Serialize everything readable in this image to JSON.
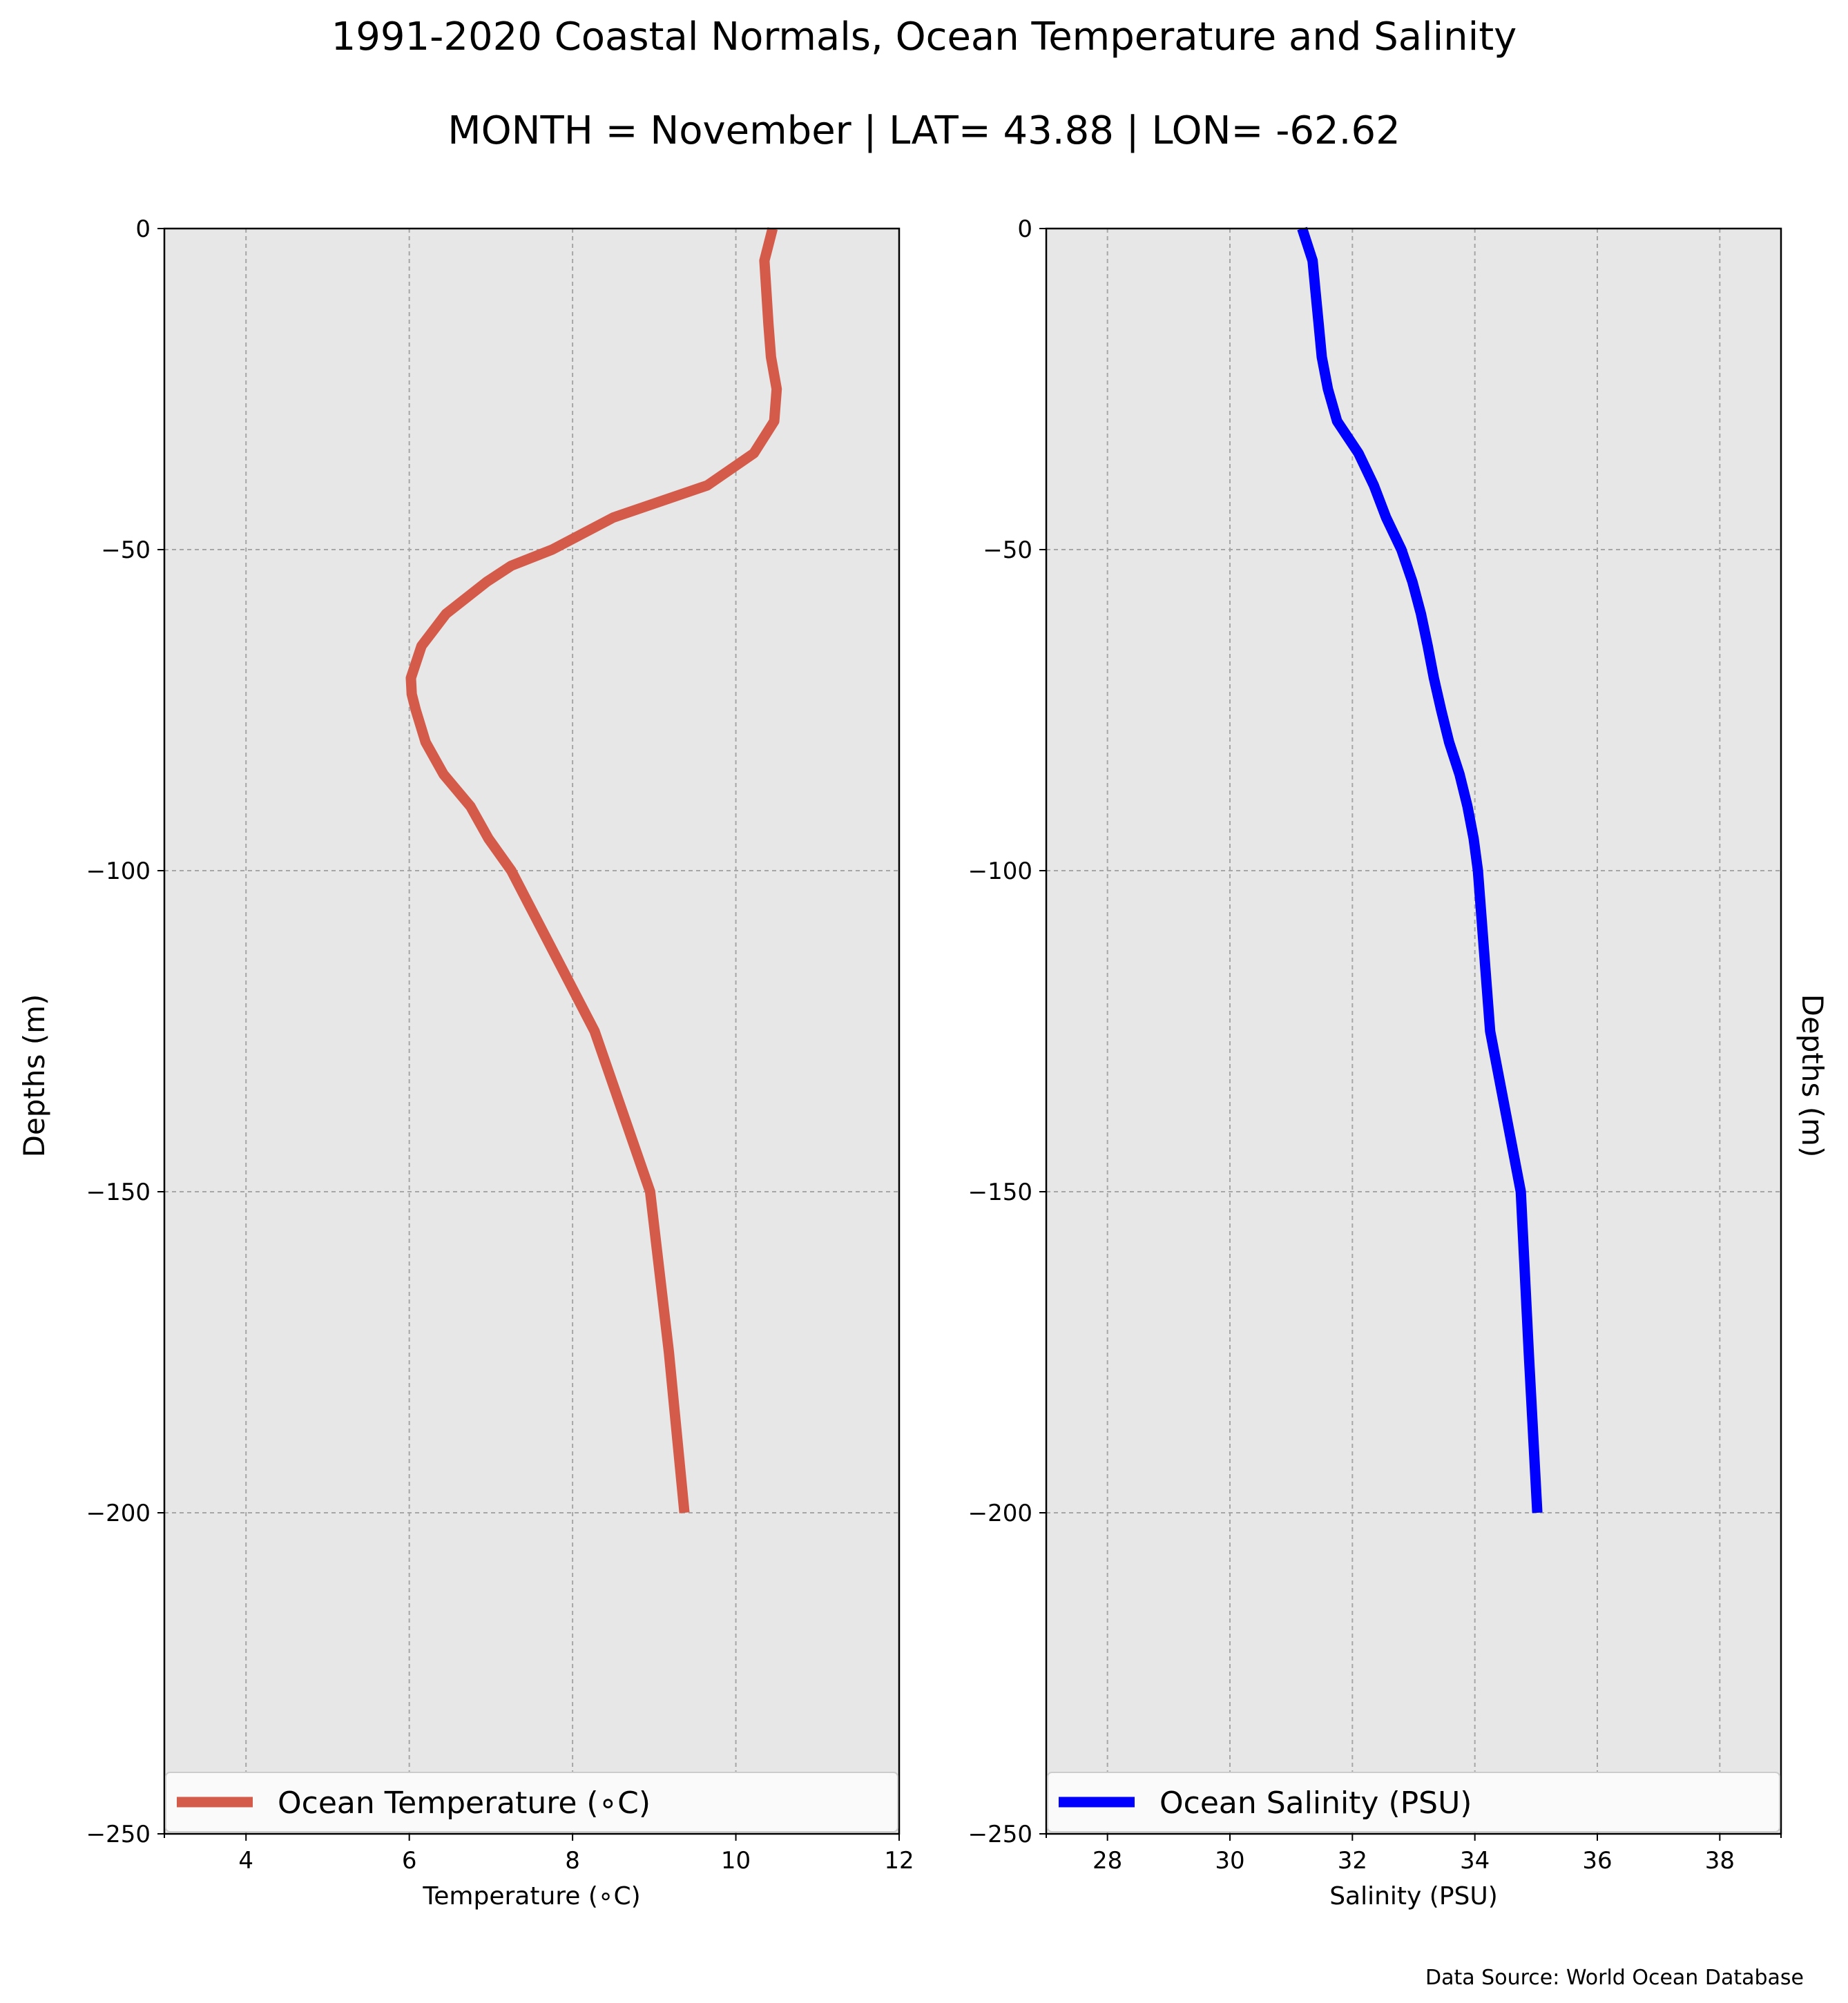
{
  "figure": {
    "title": "1991-2020 Coastal Normals, Ocean Temperature and Salinity",
    "subtitle": "MONTH = November | LAT= 43.88 | LON= -62.62",
    "source": "Data Source: World Ocean Database"
  },
  "colors": {
    "temperature": "#d45b4a",
    "salinity": "#0000ff",
    "panel_bg": "#e7e7e7",
    "grid": "#a6a6a6"
  },
  "chart_data": [
    {
      "type": "line",
      "xlabel": "Temperature ($^\\circ$C)",
      "xlabel_display": "Temperature (∘C)",
      "ylabel": "Depths (m)",
      "xlim": [
        3,
        12
      ],
      "ylim": [
        -250,
        0
      ],
      "xticks": [
        4,
        6,
        8,
        10,
        12
      ],
      "xtick_labels": [
        "4",
        "6",
        "8",
        "10",
        "12"
      ],
      "yticks": [
        0,
        -50,
        -100,
        -150,
        -200,
        -250
      ],
      "ytick_labels": [
        "0",
        "−50",
        "−100",
        "−150",
        "−200",
        "−250"
      ],
      "grid": true,
      "legend": "bottom",
      "series": [
        {
          "name": "Ocean Temperature (∘C)",
          "x": [
            10.45,
            10.35,
            10.4,
            10.43,
            10.5,
            10.47,
            10.22,
            9.65,
            8.5,
            7.75,
            7.25,
            6.95,
            6.45,
            6.15,
            6.02,
            6.03,
            6.08,
            6.2,
            6.42,
            6.75,
            6.97,
            7.25,
            8.27,
            8.95,
            9.18,
            9.37
          ],
          "y": [
            0,
            -5,
            -15,
            -20,
            -25,
            -30,
            -35,
            -40,
            -45,
            -50,
            -52.5,
            -55,
            -60,
            -65,
            -70,
            -72.5,
            -75,
            -80,
            -85,
            -90,
            -95,
            -100,
            -125,
            -150,
            -175,
            -200
          ]
        }
      ]
    },
    {
      "type": "line",
      "xlabel": "Salinity (PSU)",
      "ylabel": "Depths (m)",
      "xlim": [
        27,
        39
      ],
      "ylim": [
        -250,
        0
      ],
      "xticks": [
        28,
        30,
        32,
        34,
        36,
        38
      ],
      "xtick_labels": [
        "28",
        "30",
        "32",
        "34",
        "36",
        "38"
      ],
      "yticks": [
        0,
        -50,
        -100,
        -150,
        -200,
        -250
      ],
      "ytick_labels": [
        "0",
        "−50",
        "−100",
        "−150",
        "−200",
        "−250"
      ],
      "grid": true,
      "legend": "bottom",
      "series": [
        {
          "name": "Ocean Salinity (PSU)",
          "x": [
            31.18,
            31.35,
            31.4,
            31.45,
            31.5,
            31.6,
            31.75,
            32.1,
            32.35,
            32.55,
            32.8,
            32.98,
            33.12,
            33.23,
            33.33,
            33.45,
            33.58,
            33.75,
            33.88,
            33.98,
            34.05,
            34.25,
            34.75,
            34.88,
            35.02
          ],
          "y": [
            0,
            -5,
            -10,
            -15,
            -20,
            -25,
            -30,
            -35,
            -40,
            -45,
            -50,
            -55,
            -60,
            -65,
            -70,
            -75,
            -80,
            -85,
            -90,
            -95,
            -100,
            -125,
            -150,
            -175,
            -200
          ]
        }
      ]
    }
  ]
}
